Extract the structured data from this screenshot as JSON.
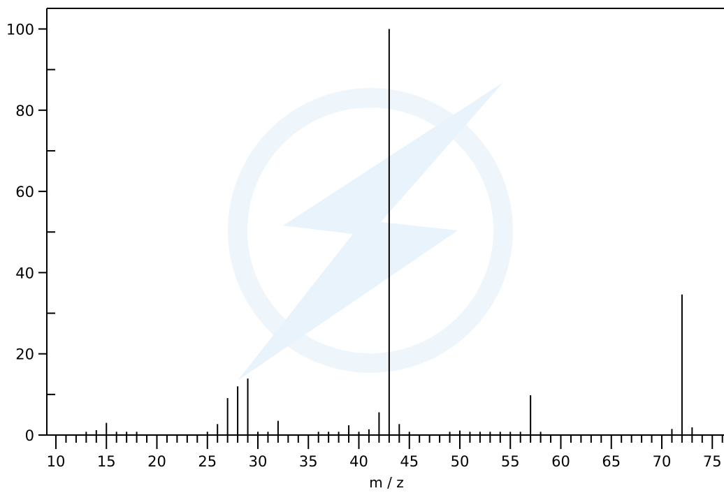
{
  "chart_data": {
    "type": "bar",
    "title": "",
    "xlabel": "m / z",
    "ylabel": "",
    "xlim": [
      10,
      76
    ],
    "ylim": [
      0,
      105
    ],
    "x_ticks": [
      10,
      15,
      20,
      25,
      30,
      35,
      40,
      45,
      50,
      55,
      60,
      65,
      70,
      75
    ],
    "y_ticks": [
      0,
      20,
      40,
      60,
      80,
      100
    ],
    "grid": false,
    "legend": "none",
    "series": [
      {
        "x": [
          13,
          14,
          15,
          16,
          17,
          18,
          25,
          26,
          27,
          28,
          29,
          30,
          31,
          32,
          36,
          37,
          38,
          39,
          40,
          41,
          42,
          43,
          44,
          45,
          49,
          50,
          51,
          52,
          53,
          54,
          55,
          56,
          57,
          58,
          71,
          72,
          73
        ],
        "y": [
          0.8,
          1.2,
          3.0,
          0.8,
          0.8,
          0.8,
          0.8,
          2.7,
          9.1,
          12.0,
          13.9,
          0.8,
          0.8,
          3.5,
          0.8,
          0.8,
          0.8,
          2.4,
          0.8,
          1.4,
          5.6,
          100.0,
          2.7,
          0.8,
          0.8,
          1.1,
          0.8,
          0.8,
          0.8,
          0.8,
          0.8,
          0.8,
          9.8,
          0.8,
          1.5,
          34.6,
          1.9
        ]
      }
    ]
  },
  "colors": {
    "axis": "#000000",
    "bars": "#000000",
    "watermark": "#eef6fc"
  }
}
